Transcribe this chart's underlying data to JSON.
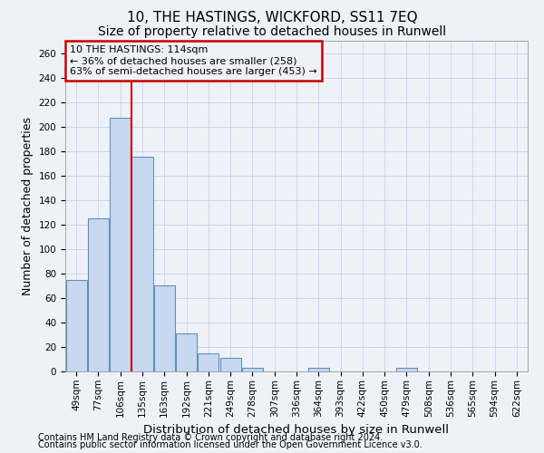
{
  "title1": "10, THE HASTINGS, WICKFORD, SS11 7EQ",
  "title2": "Size of property relative to detached houses in Runwell",
  "xlabel": "Distribution of detached houses by size in Runwell",
  "ylabel": "Number of detached properties",
  "categories": [
    "49sqm",
    "77sqm",
    "106sqm",
    "135sqm",
    "163sqm",
    "192sqm",
    "221sqm",
    "249sqm",
    "278sqm",
    "307sqm",
    "336sqm",
    "364sqm",
    "393sqm",
    "422sqm",
    "450sqm",
    "479sqm",
    "508sqm",
    "536sqm",
    "565sqm",
    "594sqm",
    "622sqm"
  ],
  "bar_values": [
    75,
    125,
    207,
    175,
    70,
    31,
    15,
    11,
    3,
    0,
    0,
    3,
    0,
    0,
    0,
    3,
    0,
    0,
    0,
    0,
    0
  ],
  "bar_color": "#c8d8ee",
  "bar_edge_color": "#6090c0",
  "ylim": [
    0,
    270
  ],
  "yticks": [
    0,
    20,
    40,
    60,
    80,
    100,
    120,
    140,
    160,
    180,
    200,
    220,
    240,
    260
  ],
  "vline_color": "#cc0000",
  "annotation_text_line1": "10 THE HASTINGS: 114sqm",
  "annotation_text_line2": "← 36% of detached houses are smaller (258)",
  "annotation_text_line3": "63% of semi-detached houses are larger (453) →",
  "annotation_box_color": "#cc0000",
  "footer_line1": "Contains HM Land Registry data © Crown copyright and database right 2024.",
  "footer_line2": "Contains public sector information licensed under the Open Government Licence v3.0.",
  "background_color": "#eef2f8",
  "grid_color": "#c8d4e8",
  "title1_fontsize": 11,
  "title2_fontsize": 10,
  "xlabel_fontsize": 9.5,
  "ylabel_fontsize": 9,
  "tick_fontsize": 7.5,
  "annotation_fontsize": 8,
  "footer_fontsize": 7
}
